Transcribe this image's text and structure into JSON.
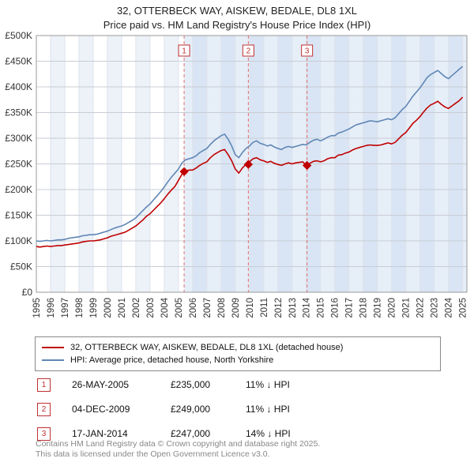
{
  "title": "32, OTTERBECK WAY, AISKEW, BEDALE, DL8 1XL",
  "subtitle": "Price paid vs. HM Land Registry's House Price Index (HPI)",
  "chart_data": {
    "type": "line",
    "title": "32, OTTERBECK WAY, AISKEW, BEDALE, DL8 1XL — Price paid vs. HPI",
    "xlabel": "",
    "ylabel": "",
    "x_range": [
      1995,
      2025.3
    ],
    "y_range": [
      0,
      500000
    ],
    "grid": true,
    "legend_position": "bottom",
    "x_ticks": [
      1995,
      1996,
      1997,
      1998,
      1999,
      2000,
      2001,
      2002,
      2003,
      2004,
      2005,
      2006,
      2007,
      2008,
      2009,
      2010,
      2011,
      2012,
      2013,
      2014,
      2015,
      2016,
      2017,
      2018,
      2019,
      2020,
      2021,
      2022,
      2023,
      2024,
      2025
    ],
    "y_ticks": [
      "£0",
      "£50K",
      "£100K",
      "£150K",
      "£200K",
      "£250K",
      "£300K",
      "£350K",
      "£400K",
      "£450K",
      "£500K"
    ],
    "x_start": 1995,
    "x_step": 0.25,
    "shaded_from": 2005.4,
    "colors": {
      "band": "#edf2f9",
      "owned_shade": "rgba(173,199,232,0.30)",
      "sale_dash": "#e07070",
      "sale_box": "#c03030",
      "grid_h": "#c8ccd4",
      "grid_v": "#dde2ea"
    },
    "series": [
      {
        "name": "32, OTTERBECK WAY, AISKEW, BEDALE, DL8 1XL (detached house)",
        "color": "#c00000",
        "values": [
          89000,
          88000,
          89000,
          90000,
          89000,
          90000,
          91000,
          91000,
          92000,
          93000,
          94000,
          95000,
          96000,
          98000,
          99000,
          100000,
          100000,
          101000,
          102000,
          104000,
          106000,
          109000,
          111000,
          113000,
          115000,
          117000,
          121000,
          125000,
          129000,
          135000,
          141000,
          148000,
          153000,
          160000,
          167000,
          174000,
          182000,
          191000,
          199000,
          206000,
          218000,
          230000,
          236000,
          238000,
          238000,
          242000,
          247000,
          251000,
          254000,
          262000,
          268000,
          272000,
          276000,
          278000,
          268000,
          256000,
          240000,
          232000,
          242000,
          249000,
          254000,
          260000,
          262000,
          258000,
          256000,
          253000,
          255000,
          251000,
          249000,
          247000,
          250000,
          252000,
          250000,
          252000,
          253000,
          254000,
          247000,
          251000,
          255000,
          256000,
          254000,
          256000,
          260000,
          262000,
          262000,
          267000,
          268000,
          271000,
          273000,
          277000,
          280000,
          282000,
          284000,
          286000,
          287000,
          286000,
          286000,
          287000,
          289000,
          291000,
          289000,
          292000,
          299000,
          306000,
          311000,
          320000,
          329000,
          335000,
          342000,
          351000,
          359000,
          365000,
          368000,
          372000,
          366000,
          361000,
          358000,
          363000,
          368000,
          373000,
          380000
        ]
      },
      {
        "name": "HPI: Average price, detached house, North Yorkshire",
        "color": "#5f86b5",
        "values": [
          100000,
          99000,
          100000,
          101000,
          100000,
          101000,
          102000,
          102000,
          103000,
          105000,
          106000,
          107000,
          108000,
          110000,
          111000,
          112000,
          112000,
          113000,
          115000,
          117000,
          119000,
          122000,
          125000,
          127000,
          129000,
          132000,
          136000,
          140000,
          145000,
          152000,
          159000,
          166000,
          172000,
          180000,
          188000,
          196000,
          205000,
          215000,
          224000,
          232000,
          240000,
          252000,
          258000,
          260000,
          262000,
          266000,
          272000,
          276000,
          280000,
          288000,
          295000,
          300000,
          305000,
          308000,
          298000,
          285000,
          268000,
          262000,
          272000,
          280000,
          285000,
          292000,
          295000,
          290000,
          288000,
          285000,
          287000,
          283000,
          280000,
          278000,
          282000,
          284000,
          282000,
          284000,
          286000,
          288000,
          287000,
          292000,
          296000,
          298000,
          295000,
          298000,
          302000,
          305000,
          305000,
          310000,
          312000,
          315000,
          318000,
          322000,
          326000,
          328000,
          330000,
          332000,
          334000,
          333000,
          332000,
          334000,
          336000,
          338000,
          336000,
          340000,
          348000,
          356000,
          362000,
          372000,
          382000,
          390000,
          398000,
          408000,
          418000,
          424000,
          428000,
          432000,
          426000,
          420000,
          416000,
          422000,
          428000,
          434000,
          440000
        ]
      }
    ]
  },
  "transactions": [
    {
      "num": "1",
      "date": "26-MAY-2005",
      "year": 2005.4,
      "price": 235000,
      "price_label": "£235,000",
      "hpi_label": "11% ↓ HPI"
    },
    {
      "num": "2",
      "date": "04-DEC-2009",
      "year": 2009.92,
      "price": 249000,
      "price_label": "£249,000",
      "hpi_label": "11% ↓ HPI"
    },
    {
      "num": "3",
      "date": "17-JAN-2014",
      "year": 2014.05,
      "price": 247000,
      "price_label": "£247,000",
      "hpi_label": "14% ↓ HPI"
    }
  ],
  "footer": {
    "line1": "Contains HM Land Registry data © Crown copyright and database right 2025.",
    "line2": "This data is licensed under the Open Government Licence v3.0."
  }
}
